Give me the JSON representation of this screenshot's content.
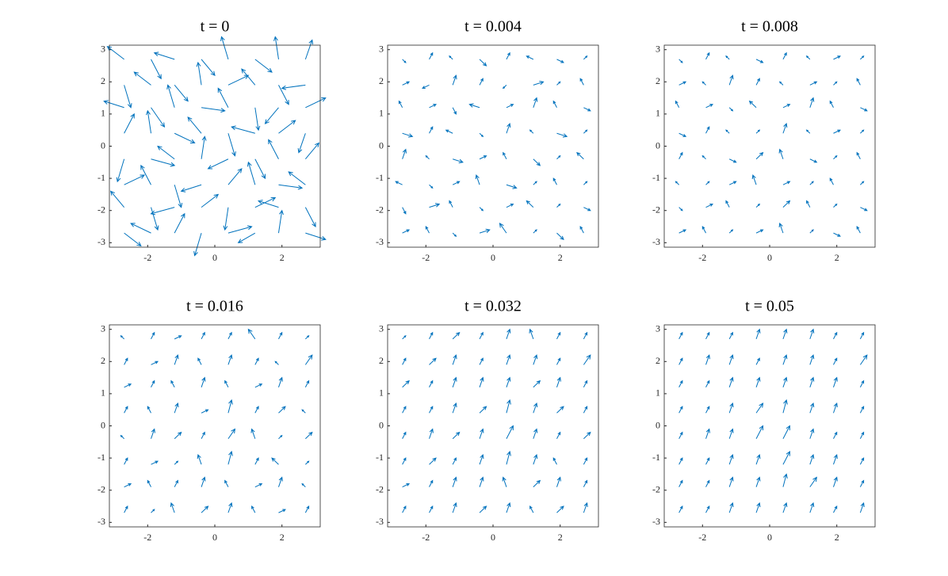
{
  "chart_data": [
    {
      "type": "quiver",
      "title": "t = 0",
      "color": "#0072bd",
      "x": [
        -2.7,
        -1.9,
        -1.2,
        -0.4,
        0.4,
        1.2,
        1.9,
        2.7
      ],
      "y": [
        -2.7,
        -1.9,
        -1.2,
        -0.4,
        0.4,
        1.2,
        1.9,
        2.7
      ],
      "u": [
        [
          0.5,
          -0.6,
          0.3,
          -0.2,
          0.7,
          -0.5,
          0.1,
          0.6
        ],
        [
          -0.4,
          0.2,
          -0.7,
          0.5,
          -0.1,
          0.6,
          -0.6,
          0.3
        ],
        [
          0.6,
          -0.3,
          0.2,
          -0.6,
          0.4,
          -0.2,
          0.7,
          -0.5
        ],
        [
          -0.2,
          0.7,
          -0.5,
          0.1,
          -0.6,
          0.3,
          -0.3,
          0.4
        ],
        [
          0.3,
          -0.1,
          0.6,
          -0.4,
          0.2,
          -0.7,
          0.5,
          -0.2
        ],
        [
          -0.6,
          0.4,
          -0.2,
          0.7,
          -0.3,
          0.1,
          -0.4,
          0.6
        ],
        [
          0.2,
          -0.5,
          0.4,
          -0.1,
          0.6,
          -0.4,
          0.3,
          -0.7
        ],
        [
          -0.5,
          0.3,
          -0.6,
          0.4,
          -0.2,
          0.5,
          -0.1,
          0.2
        ]
      ],
      "v": [
        [
          -0.4,
          0.3,
          0.6,
          -0.7,
          0.2,
          -0.3,
          0.7,
          -0.2
        ],
        [
          0.5,
          -0.7,
          -0.2,
          0.4,
          -0.7,
          0.3,
          0.2,
          -0.6
        ],
        [
          0.3,
          0.6,
          -0.7,
          -0.2,
          0.5,
          0.7,
          -0.1,
          0.4
        ],
        [
          -0.7,
          -0.2,
          0.4,
          0.7,
          -0.3,
          -0.6,
          0.6,
          0.5
        ],
        [
          0.6,
          0.7,
          -0.3,
          0.5,
          -0.7,
          0.2,
          0.4,
          -0.6
        ],
        [
          0.2,
          -0.6,
          0.7,
          -0.1,
          0.6,
          -0.7,
          -0.5,
          0.3
        ],
        [
          -0.7,
          0.4,
          -0.5,
          0.7,
          0.3,
          0.5,
          -0.6,
          -0.1
        ],
        [
          0.4,
          -0.6,
          0.2,
          -0.5,
          0.7,
          -0.4,
          0.7,
          0.6
        ]
      ],
      "xlim": [
        -3.14,
        3.14
      ],
      "ylim": [
        -3.14,
        3.14
      ],
      "xticks": [
        -2,
        0,
        2
      ],
      "yticks": [
        -3,
        -2,
        -1,
        0,
        1,
        2,
        3
      ]
    },
    {
      "type": "quiver",
      "title": "t = 0.004",
      "color": "#0072bd",
      "x": [
        -2.7,
        -1.9,
        -1.2,
        -0.4,
        0.4,
        1.2,
        1.9,
        2.7
      ],
      "y": [
        -2.7,
        -1.9,
        -1.2,
        -0.4,
        0.4,
        1.2,
        1.9,
        2.7
      ],
      "u": [
        [
          0.2,
          -0.1,
          0.1,
          0.3,
          -0.2,
          0.1,
          0.2,
          -0.1
        ],
        [
          0.1,
          0.3,
          -0.1,
          0.1,
          0.2,
          -0.2,
          0.1,
          0.2
        ],
        [
          -0.2,
          0.1,
          0.2,
          -0.1,
          0.3,
          0.1,
          -0.1,
          0.1
        ],
        [
          0.1,
          -0.1,
          0.3,
          0.2,
          -0.1,
          0.2,
          0.1,
          -0.2
        ],
        [
          0.3,
          0.1,
          -0.2,
          0.1,
          0.1,
          -0.1,
          0.3,
          0.1
        ],
        [
          -0.1,
          0.2,
          0.1,
          -0.3,
          0.2,
          0.1,
          -0.1,
          0.2
        ],
        [
          0.2,
          -0.2,
          0.1,
          0.1,
          -0.1,
          0.3,
          0.1,
          -0.1
        ],
        [
          0.1,
          0.1,
          -0.1,
          0.2,
          0.1,
          -0.2,
          0.2,
          0.1
        ]
      ],
      "v": [
        [
          0.1,
          0.2,
          -0.1,
          0.1,
          0.3,
          0.1,
          -0.2,
          0.2
        ],
        [
          -0.2,
          0.1,
          0.2,
          -0.1,
          0.1,
          0.2,
          0.1,
          -0.1
        ],
        [
          0.1,
          -0.1,
          0.1,
          0.3,
          -0.1,
          0.1,
          0.2,
          0.1
        ],
        [
          0.3,
          0.1,
          -0.1,
          0.1,
          0.2,
          -0.2,
          0.1,
          0.2
        ],
        [
          -0.1,
          0.2,
          0.1,
          -0.1,
          0.3,
          0.1,
          -0.1,
          0.1
        ],
        [
          0.2,
          0.1,
          -0.2,
          0.1,
          0.1,
          0.3,
          0.2,
          -0.1
        ],
        [
          0.1,
          -0.1,
          0.3,
          0.2,
          -0.1,
          0.1,
          0.1,
          0.2
        ],
        [
          -0.1,
          0.2,
          0.1,
          -0.2,
          0.2,
          0.1,
          -0.1,
          0.1
        ]
      ],
      "xlim": [
        -3.14,
        3.14
      ],
      "ylim": [
        -3.14,
        3.14
      ],
      "xticks": [
        -2,
        0,
        2
      ],
      "yticks": [
        -3,
        -2,
        -1,
        0,
        1,
        2,
        3
      ]
    },
    {
      "type": "quiver",
      "title": "t = 0.008",
      "color": "#0072bd",
      "x": [
        -2.7,
        -1.9,
        -1.2,
        -0.4,
        0.4,
        1.2,
        1.9,
        2.7
      ],
      "y": [
        -2.7,
        -1.9,
        -1.2,
        -0.4,
        0.4,
        1.2,
        1.9,
        2.7
      ],
      "u": [
        [
          0.2,
          -0.1,
          0.1,
          0.2,
          -0.1,
          0.1,
          0.2,
          -0.1
        ],
        [
          0.1,
          0.2,
          -0.1,
          0.1,
          0.2,
          -0.1,
          0.1,
          0.2
        ],
        [
          -0.1,
          0.1,
          0.2,
          -0.1,
          0.2,
          0.1,
          -0.1,
          0.1
        ],
        [
          0.1,
          -0.1,
          0.2,
          0.2,
          -0.1,
          0.2,
          0.1,
          -0.1
        ],
        [
          0.2,
          0.1,
          -0.1,
          0.1,
          0.1,
          -0.1,
          0.2,
          0.1
        ],
        [
          -0.1,
          0.2,
          0.1,
          -0.2,
          0.2,
          0.1,
          -0.1,
          0.2
        ],
        [
          0.2,
          -0.1,
          0.1,
          0.1,
          -0.1,
          0.2,
          0.1,
          -0.1
        ],
        [
          0.1,
          0.1,
          -0.1,
          0.2,
          0.1,
          -0.1,
          0.2,
          0.1
        ]
      ],
      "v": [
        [
          0.1,
          0.2,
          0.1,
          0.1,
          0.3,
          0.1,
          -0.1,
          0.2
        ],
        [
          -0.1,
          0.1,
          0.2,
          0.1,
          0.2,
          0.2,
          0.1,
          -0.1
        ],
        [
          0.1,
          0.1,
          0.1,
          0.3,
          0.1,
          0.1,
          0.2,
          0.1
        ],
        [
          0.2,
          0.1,
          -0.1,
          0.2,
          0.3,
          -0.1,
          0.1,
          0.2
        ],
        [
          -0.1,
          0.2,
          0.1,
          0.1,
          0.3,
          0.1,
          0.1,
          0.1
        ],
        [
          0.2,
          0.1,
          -0.1,
          0.2,
          0.1,
          0.3,
          0.2,
          -0.1
        ],
        [
          0.1,
          0.1,
          0.3,
          0.2,
          0.1,
          0.1,
          0.1,
          0.2
        ],
        [
          -0.1,
          0.2,
          0.1,
          -0.1,
          0.2,
          0.1,
          0.1,
          0.1
        ]
      ],
      "xlim": [
        -3.14,
        3.14
      ],
      "ylim": [
        -3.14,
        3.14
      ],
      "xticks": [
        -2,
        0,
        2
      ],
      "yticks": [
        -3,
        -2,
        -1,
        0,
        1,
        2,
        3
      ]
    },
    {
      "type": "quiver",
      "title": "t = 0.016",
      "color": "#0072bd",
      "x": [
        -2.7,
        -1.9,
        -1.2,
        -0.4,
        0.4,
        1.2,
        1.9,
        2.7
      ],
      "y": [
        -2.7,
        -1.9,
        -1.2,
        -0.4,
        0.4,
        1.2,
        1.9,
        2.7
      ],
      "u": [
        [
          0.1,
          0.1,
          -0.1,
          0.2,
          0.1,
          -0.1,
          0.2,
          0.1
        ],
        [
          0.2,
          -0.1,
          0.1,
          0.1,
          -0.1,
          0.2,
          0.1,
          -0.1
        ],
        [
          0.1,
          0.2,
          0.1,
          -0.1,
          0.1,
          0.1,
          -0.2,
          0.1
        ],
        [
          -0.1,
          0.1,
          0.2,
          0.1,
          0.2,
          -0.1,
          0.1,
          0.2
        ],
        [
          0.1,
          -0.1,
          0.1,
          0.2,
          0.1,
          0.1,
          0.2,
          -0.1
        ],
        [
          0.2,
          0.1,
          -0.1,
          0.1,
          -0.1,
          0.2,
          0.1,
          0.1
        ],
        [
          0.1,
          0.2,
          0.1,
          -0.1,
          0.1,
          0.1,
          -0.1,
          0.2
        ],
        [
          -0.1,
          0.1,
          0.2,
          0.1,
          0.1,
          -0.2,
          0.1,
          0.1
        ]
      ],
      "v": [
        [
          0.2,
          0.1,
          0.3,
          0.2,
          0.3,
          0.2,
          0.1,
          0.2
        ],
        [
          0.1,
          0.2,
          0.2,
          0.3,
          0.2,
          0.1,
          0.3,
          0.1
        ],
        [
          0.2,
          0.1,
          0.1,
          0.3,
          0.4,
          0.2,
          0.2,
          0.1
        ],
        [
          0.1,
          0.3,
          0.2,
          0.2,
          0.3,
          0.3,
          0.1,
          0.2
        ],
        [
          0.2,
          0.2,
          0.3,
          0.1,
          0.4,
          0.2,
          0.2,
          0.1
        ],
        [
          0.1,
          0.2,
          0.2,
          0.3,
          0.2,
          0.1,
          0.3,
          0.2
        ],
        [
          0.2,
          0.1,
          0.3,
          0.2,
          0.3,
          0.2,
          0.1,
          0.3
        ],
        [
          0.1,
          0.2,
          0.1,
          0.2,
          0.2,
          0.3,
          0.2,
          0.1
        ]
      ],
      "xlim": [
        -3.14,
        3.14
      ],
      "ylim": [
        -3.14,
        3.14
      ],
      "xticks": [
        -2,
        0,
        2
      ],
      "yticks": [
        -3,
        -2,
        -1,
        0,
        1,
        2,
        3
      ]
    },
    {
      "type": "quiver",
      "title": "t = 0.032",
      "color": "#0072bd",
      "x": [
        -2.7,
        -1.9,
        -1.2,
        -0.4,
        0.4,
        1.2,
        1.9,
        2.7
      ],
      "y": [
        -2.7,
        -1.9,
        -1.2,
        -0.4,
        0.4,
        1.2,
        1.9,
        2.7
      ],
      "u": [
        [
          0.1,
          0.1,
          0.1,
          0.2,
          0.1,
          -0.1,
          0.2,
          0.1
        ],
        [
          0.2,
          0.1,
          0.1,
          0.1,
          -0.1,
          0.2,
          0.1,
          0.1
        ],
        [
          0.1,
          0.2,
          0.1,
          0.1,
          0.1,
          0.1,
          -0.1,
          0.1
        ],
        [
          0.1,
          0.1,
          0.2,
          0.1,
          0.2,
          0.1,
          0.1,
          0.2
        ],
        [
          0.1,
          0.1,
          0.1,
          0.2,
          0.1,
          0.1,
          0.2,
          0.1
        ],
        [
          0.2,
          0.1,
          0.1,
          0.1,
          0.1,
          0.2,
          0.1,
          0.1
        ],
        [
          0.1,
          0.2,
          0.1,
          0.1,
          0.1,
          0.1,
          0.1,
          0.2
        ],
        [
          0.1,
          0.1,
          0.2,
          0.1,
          0.1,
          -0.1,
          0.1,
          0.1
        ]
      ],
      "v": [
        [
          0.2,
          0.2,
          0.3,
          0.2,
          0.3,
          0.2,
          0.2,
          0.3
        ],
        [
          0.1,
          0.2,
          0.3,
          0.3,
          0.3,
          0.2,
          0.3,
          0.2
        ],
        [
          0.2,
          0.2,
          0.2,
          0.3,
          0.4,
          0.3,
          0.2,
          0.2
        ],
        [
          0.2,
          0.3,
          0.2,
          0.3,
          0.4,
          0.3,
          0.2,
          0.2
        ],
        [
          0.2,
          0.2,
          0.3,
          0.2,
          0.4,
          0.3,
          0.2,
          0.2
        ],
        [
          0.2,
          0.2,
          0.3,
          0.3,
          0.3,
          0.2,
          0.3,
          0.2
        ],
        [
          0.2,
          0.2,
          0.3,
          0.2,
          0.3,
          0.3,
          0.2,
          0.3
        ],
        [
          0.1,
          0.2,
          0.2,
          0.2,
          0.3,
          0.3,
          0.2,
          0.2
        ]
      ],
      "xlim": [
        -3.14,
        3.14
      ],
      "ylim": [
        -3.14,
        3.14
      ],
      "xticks": [
        -2,
        0,
        2
      ],
      "yticks": [
        -3,
        -2,
        -1,
        0,
        1,
        2,
        3
      ]
    },
    {
      "type": "quiver",
      "title": "t = 0.05",
      "color": "#0072bd",
      "x": [
        -2.7,
        -1.9,
        -1.2,
        -0.4,
        0.4,
        1.2,
        1.9,
        2.7
      ],
      "y": [
        -2.7,
        -1.9,
        -1.2,
        -0.4,
        0.4,
        1.2,
        1.9,
        2.7
      ],
      "u": [
        [
          0.1,
          0.1,
          0.1,
          0.1,
          0.1,
          0.1,
          0.1,
          0.1
        ],
        [
          0.1,
          0.1,
          0.1,
          0.1,
          0.1,
          0.2,
          0.1,
          0.1
        ],
        [
          0.1,
          0.1,
          0.1,
          0.1,
          0.2,
          0.1,
          0.1,
          0.1
        ],
        [
          0.1,
          0.1,
          0.1,
          0.2,
          0.2,
          0.1,
          0.1,
          0.1
        ],
        [
          0.1,
          0.1,
          0.1,
          0.2,
          0.1,
          0.1,
          0.1,
          0.1
        ],
        [
          0.1,
          0.1,
          0.1,
          0.1,
          0.1,
          0.1,
          0.1,
          0.1
        ],
        [
          0.1,
          0.1,
          0.1,
          0.1,
          0.1,
          0.1,
          0.1,
          0.2
        ],
        [
          0.1,
          0.1,
          0.1,
          0.1,
          0.1,
          0.1,
          0.1,
          0.1
        ]
      ],
      "v": [
        [
          0.2,
          0.2,
          0.3,
          0.3,
          0.3,
          0.3,
          0.2,
          0.3
        ],
        [
          0.2,
          0.2,
          0.3,
          0.3,
          0.4,
          0.3,
          0.3,
          0.2
        ],
        [
          0.2,
          0.2,
          0.3,
          0.3,
          0.4,
          0.3,
          0.3,
          0.2
        ],
        [
          0.2,
          0.3,
          0.3,
          0.4,
          0.4,
          0.3,
          0.2,
          0.2
        ],
        [
          0.2,
          0.2,
          0.3,
          0.3,
          0.4,
          0.3,
          0.3,
          0.2
        ],
        [
          0.2,
          0.2,
          0.3,
          0.3,
          0.3,
          0.3,
          0.3,
          0.2
        ],
        [
          0.2,
          0.3,
          0.3,
          0.2,
          0.3,
          0.3,
          0.2,
          0.3
        ],
        [
          0.2,
          0.2,
          0.2,
          0.3,
          0.3,
          0.3,
          0.2,
          0.2
        ]
      ],
      "xlim": [
        -3.14,
        3.14
      ],
      "ylim": [
        -3.14,
        3.14
      ],
      "xticks": [
        -2,
        0,
        2
      ],
      "yticks": [
        -3,
        -2,
        -1,
        0,
        1,
        2,
        3
      ]
    }
  ]
}
